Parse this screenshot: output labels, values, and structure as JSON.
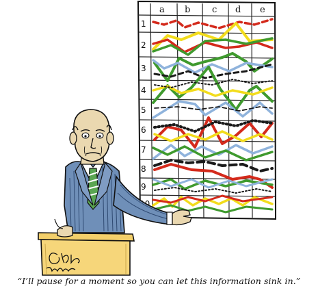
{
  "chart": {
    "column_labels": [
      "a",
      "b",
      "c",
      "d",
      "e"
    ],
    "row_labels": [
      "1",
      "2",
      "3",
      "4",
      "5",
      "6",
      "7",
      "8",
      "9",
      "10"
    ]
  },
  "signature": "Graham Wilson",
  "caption": "“I’ll pause for a moment so you can let this information sink in.”",
  "colors": {
    "red": "#d42a1c",
    "green": "#3f9a2e",
    "yellow": "#f2dc1c",
    "blue": "#8fb3dc",
    "black": "#1a1a1a",
    "suit": "#6f8fb8",
    "skin": "#ead8b0",
    "podium": "#f3cf6a"
  }
}
